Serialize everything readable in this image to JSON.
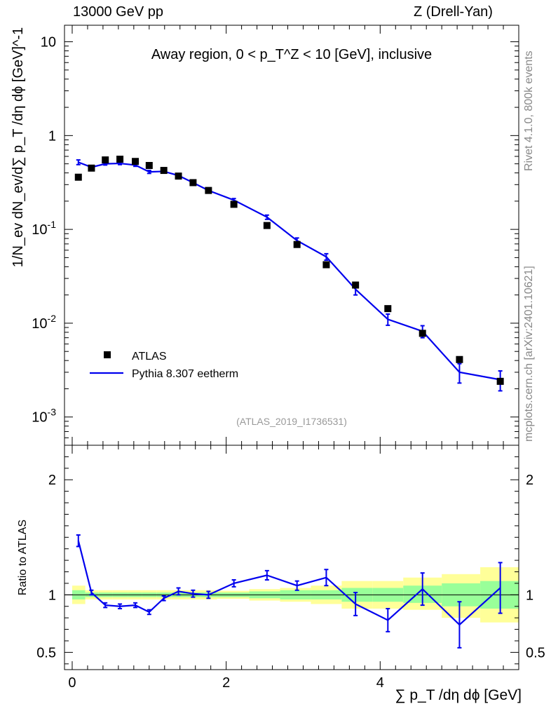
{
  "header": {
    "left": "13000 GeV pp",
    "right": "Z (Drell-Yan)"
  },
  "side_labels": {
    "rivet": "Rivet 4.1.0,  800k events",
    "site": "mcplots.cern.ch [arXiv:2401.10621]"
  },
  "chart_data": {
    "type": "line",
    "title": "Away region, 0 < p_T^Z < 10 [GeV], inclusive",
    "analysis": "(ATLAS_2019_I1736531)",
    "xlabel": "∑ p_T /dη dϕ [GeV]",
    "ylabel": "1/N_ev dN_ev/d∑ p_T /dη dϕ [GeV]^-1",
    "ratio_ylabel": "Ratio to ATLAS",
    "xlim": [
      -0.1,
      5.8
    ],
    "ylim": [
      0.0005,
      15
    ],
    "ratio_ylim": [
      0.35,
      2.3
    ],
    "x_ticks": [
      "0",
      "2",
      "4"
    ],
    "y_ticks": [
      "10",
      "1",
      "10^-1",
      "10^-2",
      "10^-3"
    ],
    "ratio_ticks": [
      "2",
      "1",
      "0.5"
    ],
    "legend": [
      "ATLAS",
      "Pythia 8.307 eetherm"
    ],
    "x": [
      0.08,
      0.25,
      0.43,
      0.62,
      0.82,
      1.0,
      1.19,
      1.38,
      1.57,
      1.77,
      2.1,
      2.53,
      2.92,
      3.3,
      3.68,
      4.1,
      4.55,
      5.03,
      5.56
    ],
    "atlas": [
      0.36,
      0.45,
      0.55,
      0.56,
      0.53,
      0.48,
      0.425,
      0.37,
      0.315,
      0.26,
      0.185,
      0.11,
      0.069,
      0.042,
      0.0255,
      0.0143,
      0.0078,
      0.0041,
      0.0024
    ],
    "pythia": [
      0.52,
      0.46,
      0.5,
      0.505,
      0.485,
      0.41,
      0.415,
      0.375,
      0.315,
      0.26,
      0.205,
      0.135,
      0.076,
      0.051,
      0.023,
      0.011,
      0.0082,
      0.003,
      0.0025
    ],
    "pythia_err": [
      0.03,
      0.015,
      0.015,
      0.015,
      0.015,
      0.015,
      0.015,
      0.01,
      0.01,
      0.01,
      0.008,
      0.007,
      0.005,
      0.004,
      0.003,
      0.0015,
      0.0012,
      0.0007,
      0.0006
    ],
    "ratio": [
      1.47,
      1.02,
      0.91,
      0.9,
      0.91,
      0.85,
      0.97,
      1.03,
      1.01,
      1.0,
      1.1,
      1.17,
      1.08,
      1.15,
      0.92,
      0.78,
      1.05,
      0.74,
      1.06
    ],
    "ratio_err": [
      0.05,
      0.02,
      0.02,
      0.02,
      0.02,
      0.02,
      0.02,
      0.03,
      0.03,
      0.03,
      0.03,
      0.04,
      0.04,
      0.07,
      0.1,
      0.1,
      0.14,
      0.2,
      0.22
    ],
    "bands": [
      {
        "x0": 0.0,
        "x1": 0.17,
        "green": [
          0.96,
          1.04
        ],
        "yellow": [
          0.92,
          1.08
        ]
      },
      {
        "x0": 0.17,
        "x1": 0.34,
        "green": [
          0.98,
          1.02
        ],
        "yellow": [
          0.96,
          1.04
        ]
      },
      {
        "x0": 0.34,
        "x1": 0.52,
        "green": [
          0.98,
          1.02
        ],
        "yellow": [
          0.96,
          1.04
        ]
      },
      {
        "x0": 0.52,
        "x1": 0.72,
        "green": [
          0.98,
          1.02
        ],
        "yellow": [
          0.96,
          1.04
        ]
      },
      {
        "x0": 0.72,
        "x1": 0.91,
        "green": [
          0.98,
          1.02
        ],
        "yellow": [
          0.96,
          1.04
        ]
      },
      {
        "x0": 0.91,
        "x1": 1.1,
        "green": [
          0.98,
          1.02
        ],
        "yellow": [
          0.96,
          1.04
        ]
      },
      {
        "x0": 1.1,
        "x1": 1.29,
        "green": [
          0.98,
          1.02
        ],
        "yellow": [
          0.96,
          1.04
        ]
      },
      {
        "x0": 1.29,
        "x1": 1.48,
        "green": [
          0.98,
          1.02
        ],
        "yellow": [
          0.96,
          1.04
        ]
      },
      {
        "x0": 1.48,
        "x1": 1.67,
        "green": [
          0.98,
          1.02
        ],
        "yellow": [
          0.96,
          1.04
        ]
      },
      {
        "x0": 1.67,
        "x1": 1.88,
        "green": [
          0.98,
          1.02
        ],
        "yellow": [
          0.96,
          1.04
        ]
      },
      {
        "x0": 1.88,
        "x1": 2.3,
        "green": [
          0.98,
          1.02
        ],
        "yellow": [
          0.965,
          1.035
        ]
      },
      {
        "x0": 2.3,
        "x1": 2.7,
        "green": [
          0.97,
          1.03
        ],
        "yellow": [
          0.95,
          1.05
        ]
      },
      {
        "x0": 2.7,
        "x1": 3.1,
        "green": [
          0.96,
          1.04
        ],
        "yellow": [
          0.94,
          1.06
        ]
      },
      {
        "x0": 3.1,
        "x1": 3.5,
        "green": [
          0.96,
          1.04
        ],
        "yellow": [
          0.92,
          1.08
        ]
      },
      {
        "x0": 3.5,
        "x1": 3.9,
        "green": [
          0.94,
          1.06
        ],
        "yellow": [
          0.88,
          1.12
        ]
      },
      {
        "x0": 3.9,
        "x1": 4.3,
        "green": [
          0.94,
          1.06
        ],
        "yellow": [
          0.88,
          1.12
        ]
      },
      {
        "x0": 4.3,
        "x1": 4.8,
        "green": [
          0.93,
          1.08
        ],
        "yellow": [
          0.87,
          1.15
        ]
      },
      {
        "x0": 4.8,
        "x1": 5.3,
        "green": [
          0.9,
          1.1
        ],
        "yellow": [
          0.8,
          1.18
        ]
      },
      {
        "x0": 5.3,
        "x1": 5.8,
        "green": [
          0.88,
          1.12
        ],
        "yellow": [
          0.76,
          1.24
        ]
      }
    ],
    "colors": {
      "data": "#000000",
      "mc": "#0000ee",
      "green": "#99ff99",
      "yellow": "#ffff99"
    }
  }
}
